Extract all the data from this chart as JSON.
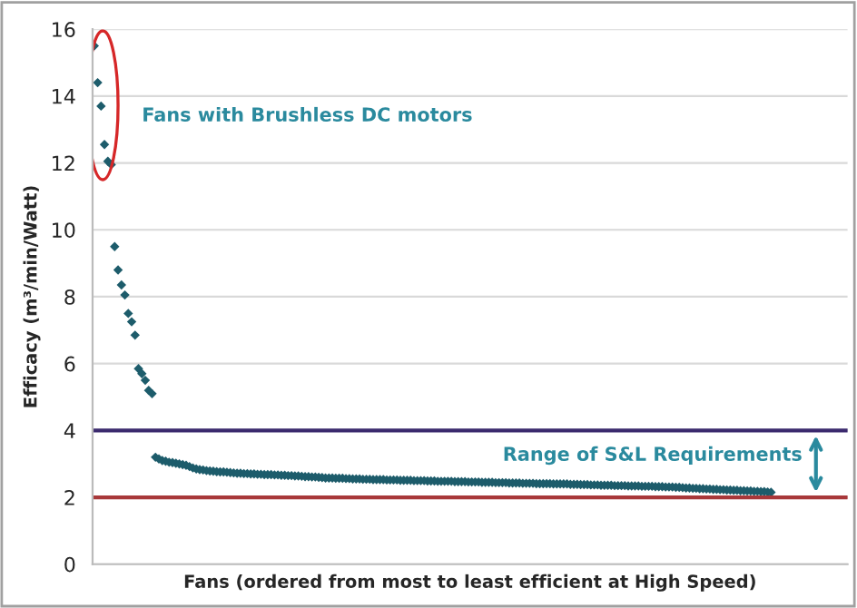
{
  "chart_data": {
    "type": "scatter",
    "xlabel": "Fans (ordered from most to least efficient at High Speed)",
    "ylabel": "Efficacy (m³/min/Watt)",
    "categories": [
      null,
      null,
      null,
      null,
      null,
      null,
      null,
      null,
      null,
      null,
      null,
      null,
      null,
      null,
      null,
      null,
      null,
      null,
      null,
      null,
      null,
      null,
      null,
      null,
      null,
      null,
      null,
      null,
      null,
      null,
      null,
      null,
      null,
      null,
      null,
      null,
      null,
      null,
      null,
      null,
      null,
      null,
      null,
      null,
      null,
      null,
      null,
      null,
      null,
      null,
      null,
      null,
      null,
      null,
      null,
      null,
      null,
      null,
      null,
      null,
      null,
      null,
      null,
      null,
      null,
      null,
      null,
      null,
      null,
      null,
      null,
      null,
      null,
      null,
      null,
      null,
      null,
      null,
      null,
      null,
      null,
      null,
      null,
      null,
      null,
      null,
      null,
      null,
      null,
      null,
      null,
      null,
      null,
      null,
      null,
      null,
      null,
      null,
      null,
      null,
      null,
      null,
      null,
      null,
      null,
      null,
      null,
      null,
      null,
      null,
      null,
      null,
      null,
      null,
      null,
      null,
      null,
      null,
      null,
      null,
      null,
      null,
      null,
      null,
      null,
      null,
      null,
      null,
      null,
      null,
      null,
      null,
      null,
      null,
      null,
      null,
      null,
      null,
      null,
      null,
      null,
      null,
      null,
      null,
      null,
      null,
      null,
      null,
      null,
      null,
      null,
      null,
      null,
      null,
      null,
      null,
      null,
      null,
      null,
      null,
      null,
      null,
      null,
      null,
      null,
      null,
      null,
      null,
      null,
      null,
      null,
      null,
      null,
      null,
      null,
      null,
      null,
      null,
      null,
      null,
      null,
      null,
      null,
      null,
      null,
      null,
      null,
      null,
      null,
      null,
      null,
      null,
      null,
      null,
      null,
      null,
      null,
      null,
      null,
      null,
      null,
      null,
      null,
      null,
      null,
      null,
      null,
      null,
      null,
      null,
      null,
      null,
      null,
      null,
      null,
      null,
      null,
      null,
      null,
      null,
      null,
      null
    ],
    "series": [
      {
        "color": "#1d5c6b",
        "values": [
          15.5,
          14.4,
          13.7,
          12.55,
          12.05,
          11.95,
          9.5,
          8.8,
          8.35,
          8.05,
          7.5,
          7.25,
          6.85,
          5.85,
          5.7,
          5.5,
          5.2,
          5.1,
          3.2,
          3.15,
          3.1,
          3.08,
          3.05,
          3.04,
          3.02,
          3.0,
          2.98,
          2.96,
          2.92,
          2.88,
          2.85,
          2.83,
          2.82,
          2.8,
          2.79,
          2.78,
          2.77,
          2.76,
          2.76,
          2.75,
          2.74,
          2.73,
          2.72,
          2.72,
          2.71,
          2.71,
          2.7,
          2.7,
          2.69,
          2.69,
          2.68,
          2.68,
          2.68,
          2.67,
          2.67,
          2.66,
          2.66,
          2.65,
          2.65,
          2.64,
          2.64,
          2.63,
          2.62,
          2.62,
          2.61,
          2.61,
          2.6,
          2.59,
          2.58,
          2.58,
          2.58,
          2.57,
          2.57,
          2.57,
          2.56,
          2.56,
          2.55,
          2.55,
          2.55,
          2.54,
          2.54,
          2.54,
          2.53,
          2.53,
          2.53,
          2.53,
          2.52,
          2.52,
          2.52,
          2.52,
          2.51,
          2.51,
          2.51,
          2.51,
          2.5,
          2.5,
          2.5,
          2.5,
          2.49,
          2.49,
          2.49,
          2.48,
          2.48,
          2.48,
          2.48,
          2.48,
          2.47,
          2.47,
          2.47,
          2.47,
          2.46,
          2.46,
          2.46,
          2.46,
          2.45,
          2.45,
          2.45,
          2.45,
          2.44,
          2.44,
          2.44,
          2.44,
          2.43,
          2.43,
          2.43,
          2.43,
          2.42,
          2.42,
          2.42,
          2.42,
          2.41,
          2.41,
          2.41,
          2.41,
          2.41,
          2.4,
          2.4,
          2.4,
          2.4,
          2.4,
          2.39,
          2.39,
          2.39,
          2.38,
          2.38,
          2.38,
          2.37,
          2.37,
          2.37,
          2.36,
          2.36,
          2.36,
          2.36,
          2.35,
          2.35,
          2.35,
          2.35,
          2.34,
          2.34,
          2.34,
          2.34,
          2.33,
          2.33,
          2.33,
          2.33,
          2.32,
          2.32,
          2.32,
          2.31,
          2.31,
          2.31,
          2.3,
          2.3,
          2.29,
          2.28,
          2.28,
          2.27,
          2.27,
          2.26,
          2.26,
          2.25,
          2.25,
          2.24,
          2.24,
          2.23,
          2.23,
          2.22,
          2.22,
          2.21,
          2.21,
          2.2,
          2.2,
          2.19,
          2.19,
          2.18,
          2.18,
          2.17,
          2.17,
          2.16,
          2.15,
          null,
          null,
          null,
          null,
          null,
          null,
          null,
          null,
          null,
          null,
          null,
          null,
          null,
          null,
          null,
          null,
          null,
          null,
          null,
          null,
          null,
          null
        ]
      }
    ],
    "ylim": [
      0,
      16
    ],
    "yticks": [
      0,
      2,
      4,
      6,
      8,
      10,
      12,
      14,
      16
    ],
    "tick_labels": "y",
    "grid": "y",
    "marker": "diamond",
    "ref_lines": [
      {
        "axis": "y",
        "value": 4,
        "color": "#3b2a6e"
      },
      {
        "axis": "y",
        "value": 2,
        "color": "#a8383a"
      }
    ],
    "annotations": [
      "Fans with Brushless DC motors",
      "Range of S&L Requirements"
    ]
  }
}
